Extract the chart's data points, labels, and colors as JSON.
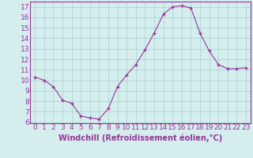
{
  "x": [
    0,
    1,
    2,
    3,
    4,
    5,
    6,
    7,
    8,
    9,
    10,
    11,
    12,
    13,
    14,
    15,
    16,
    17,
    18,
    19,
    20,
    21,
    22,
    23
  ],
  "y": [
    10.3,
    10.0,
    9.4,
    8.1,
    7.8,
    6.6,
    6.4,
    6.3,
    7.3,
    9.4,
    10.5,
    11.5,
    12.9,
    14.5,
    16.3,
    17.0,
    17.1,
    16.9,
    14.5,
    12.8,
    11.5,
    11.1,
    11.1,
    11.2
  ],
  "line_color": "#993399",
  "marker_color": "#993399",
  "bg_color": "#d4eeee",
  "grid_color": "#aacccc",
  "xlabel": "Windchill (Refroidissement éolien,°C)",
  "xlim": [
    -0.5,
    23.5
  ],
  "ylim": [
    5.9,
    17.5
  ],
  "yticks": [
    6,
    7,
    8,
    9,
    10,
    11,
    12,
    13,
    14,
    15,
    16,
    17
  ],
  "xticks": [
    0,
    1,
    2,
    3,
    4,
    5,
    6,
    7,
    8,
    9,
    10,
    11,
    12,
    13,
    14,
    15,
    16,
    17,
    18,
    19,
    20,
    21,
    22,
    23
  ],
  "tick_color": "#993399",
  "spine_color": "#993399",
  "font_size": 6.5,
  "label_font_size": 7.0
}
